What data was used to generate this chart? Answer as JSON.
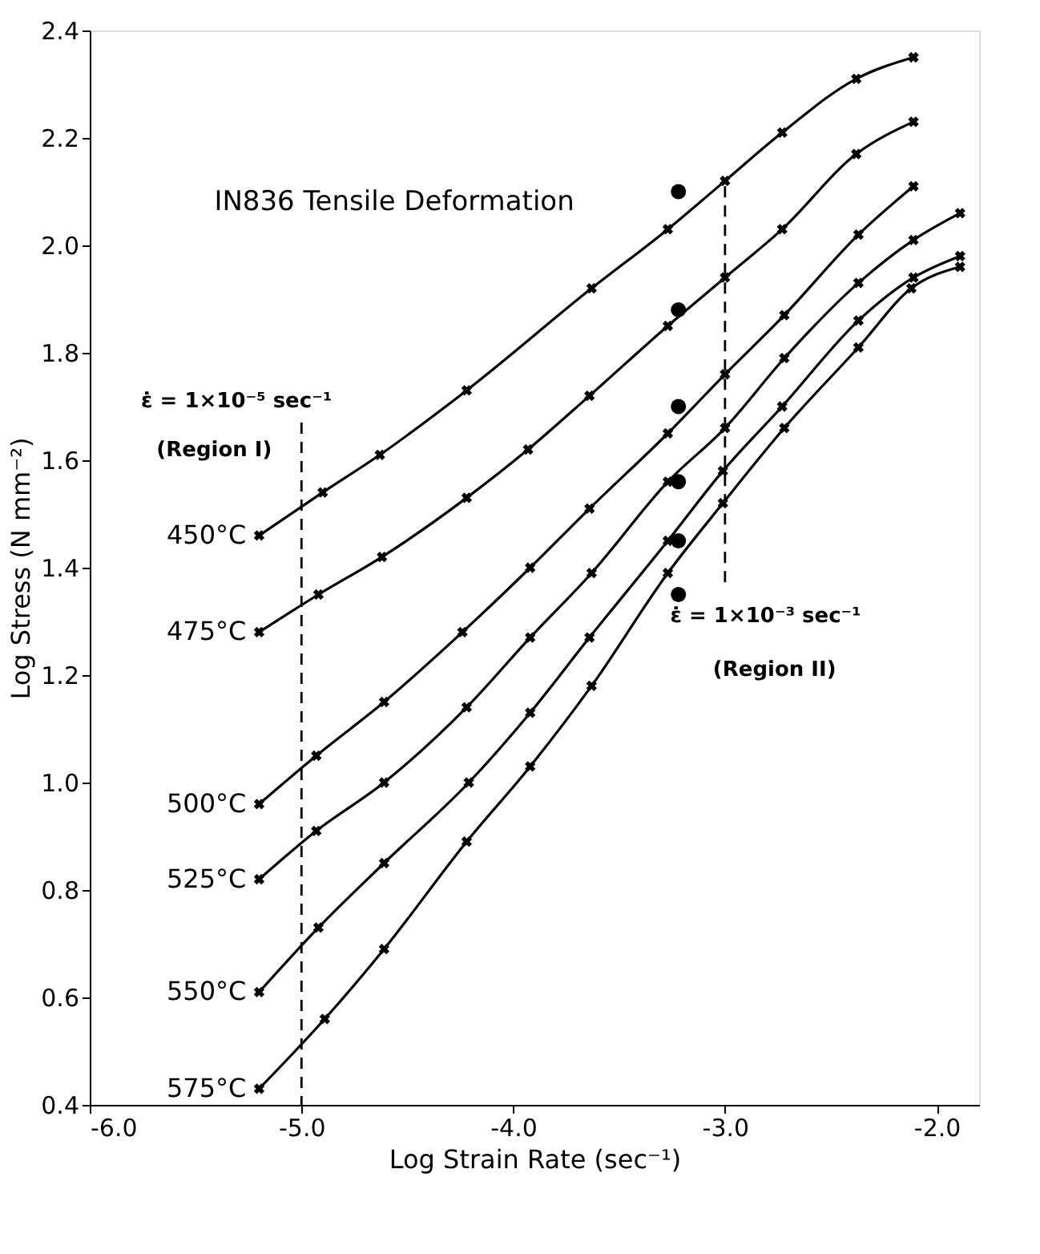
{
  "chart_data": {
    "type": "line",
    "title": "IN836   Tensile Deformation",
    "xlabel": "Log  Strain Rate (sec⁻¹)",
    "ylabel": "Log Stress (N mm⁻²)",
    "xlim": [
      -6.0,
      -1.8
    ],
    "ylim": [
      0.4,
      2.4
    ],
    "xticks": [
      {
        "value": -6.0,
        "label": "-6.0"
      },
      {
        "value": -5.0,
        "label": "-5.0"
      },
      {
        "value": -4.0,
        "label": "-4.0"
      },
      {
        "value": -3.0,
        "label": "-3.0"
      },
      {
        "value": -2.0,
        "label": "-2.0"
      }
    ],
    "yticks": [
      {
        "value": 0.4,
        "label": "0.4"
      },
      {
        "value": 0.6,
        "label": "0.6"
      },
      {
        "value": 0.8,
        "label": "0.8"
      },
      {
        "value": 1.0,
        "label": "1.0"
      },
      {
        "value": 1.2,
        "label": "1.2"
      },
      {
        "value": 1.4,
        "label": "1.4"
      },
      {
        "value": 1.6,
        "label": "1.6"
      },
      {
        "value": 1.8,
        "label": "1.8"
      },
      {
        "value": 2.0,
        "label": "2.0"
      },
      {
        "value": 2.2,
        "label": "2.2"
      },
      {
        "value": 2.4,
        "label": "2.4"
      }
    ],
    "grid": false,
    "line_style": "solid",
    "series": [
      {
        "name": "450°C",
        "color": "#000000",
        "marker": "cross",
        "x": [
          -5.2,
          -4.9,
          -4.63,
          -4.22,
          -3.63,
          -3.27,
          -3.0,
          -2.73,
          -2.38,
          -2.11
        ],
        "values": [
          1.46,
          1.54,
          1.61,
          1.73,
          1.92,
          2.03,
          2.12,
          2.21,
          2.31,
          2.35
        ]
      },
      {
        "name": "475°C",
        "color": "#000000",
        "marker": "cross",
        "x": [
          -5.2,
          -4.92,
          -4.62,
          -4.22,
          -3.93,
          -3.64,
          -3.27,
          -3.0,
          -2.73,
          -2.38,
          -2.11
        ],
        "values": [
          1.28,
          1.35,
          1.42,
          1.53,
          1.62,
          1.72,
          1.85,
          1.94,
          2.03,
          2.17,
          2.23
        ]
      },
      {
        "name": "500°C",
        "color": "#000000",
        "marker": "cross",
        "x": [
          -5.2,
          -4.93,
          -4.61,
          -4.24,
          -3.92,
          -3.64,
          -3.27,
          -3.0,
          -2.72,
          -2.37,
          -2.11
        ],
        "values": [
          0.96,
          1.05,
          1.15,
          1.28,
          1.4,
          1.51,
          1.65,
          1.76,
          1.87,
          2.02,
          2.11
        ]
      },
      {
        "name": "525°C",
        "color": "#000000",
        "marker": "cross",
        "x": [
          -5.2,
          -4.93,
          -4.61,
          -4.22,
          -3.92,
          -3.63,
          -3.27,
          -3.0,
          -2.72,
          -2.37,
          -2.11,
          -1.89
        ],
        "values": [
          0.82,
          0.91,
          1.0,
          1.14,
          1.27,
          1.39,
          1.56,
          1.66,
          1.79,
          1.93,
          2.01,
          2.06
        ]
      },
      {
        "name": "550°C",
        "color": "#000000",
        "marker": "cross",
        "x": [
          -5.2,
          -4.92,
          -4.61,
          -4.21,
          -3.92,
          -3.64,
          -3.27,
          -3.01,
          -2.73,
          -2.37,
          -2.11,
          -1.89
        ],
        "values": [
          0.61,
          0.73,
          0.85,
          1.0,
          1.13,
          1.27,
          1.45,
          1.58,
          1.7,
          1.86,
          1.94,
          1.98
        ]
      },
      {
        "name": "575°C",
        "color": "#000000",
        "marker": "cross",
        "x": [
          -5.2,
          -4.89,
          -4.61,
          -4.22,
          -3.92,
          -3.63,
          -3.27,
          -3.01,
          -2.72,
          -2.37,
          -2.12,
          -1.89
        ],
        "values": [
          0.43,
          0.56,
          0.69,
          0.89,
          1.03,
          1.18,
          1.39,
          1.52,
          1.66,
          1.81,
          1.92,
          1.96
        ]
      },
      {
        "type": "scatter",
        "color": "#000000",
        "marker": "circle",
        "x": [
          -3.22,
          -3.22,
          -3.22,
          -3.22,
          -3.22,
          -3.22
        ],
        "values": [
          2.1,
          1.88,
          1.7,
          1.56,
          1.45,
          1.35
        ]
      }
    ],
    "ref_lines": [
      {
        "axis": "x",
        "value": -5.0,
        "line_style": "dashed",
        "color": "#000000"
      },
      {
        "axis": "x",
        "value": -3.0,
        "line_style": "dashed",
        "color": "#000000"
      }
    ],
    "annotations": [
      "ε̇ = 1×10⁻⁵ sec⁻¹",
      "(Region I)",
      "ε̇ = 1×10⁻³ sec⁻¹",
      "(Region II)"
    ]
  }
}
